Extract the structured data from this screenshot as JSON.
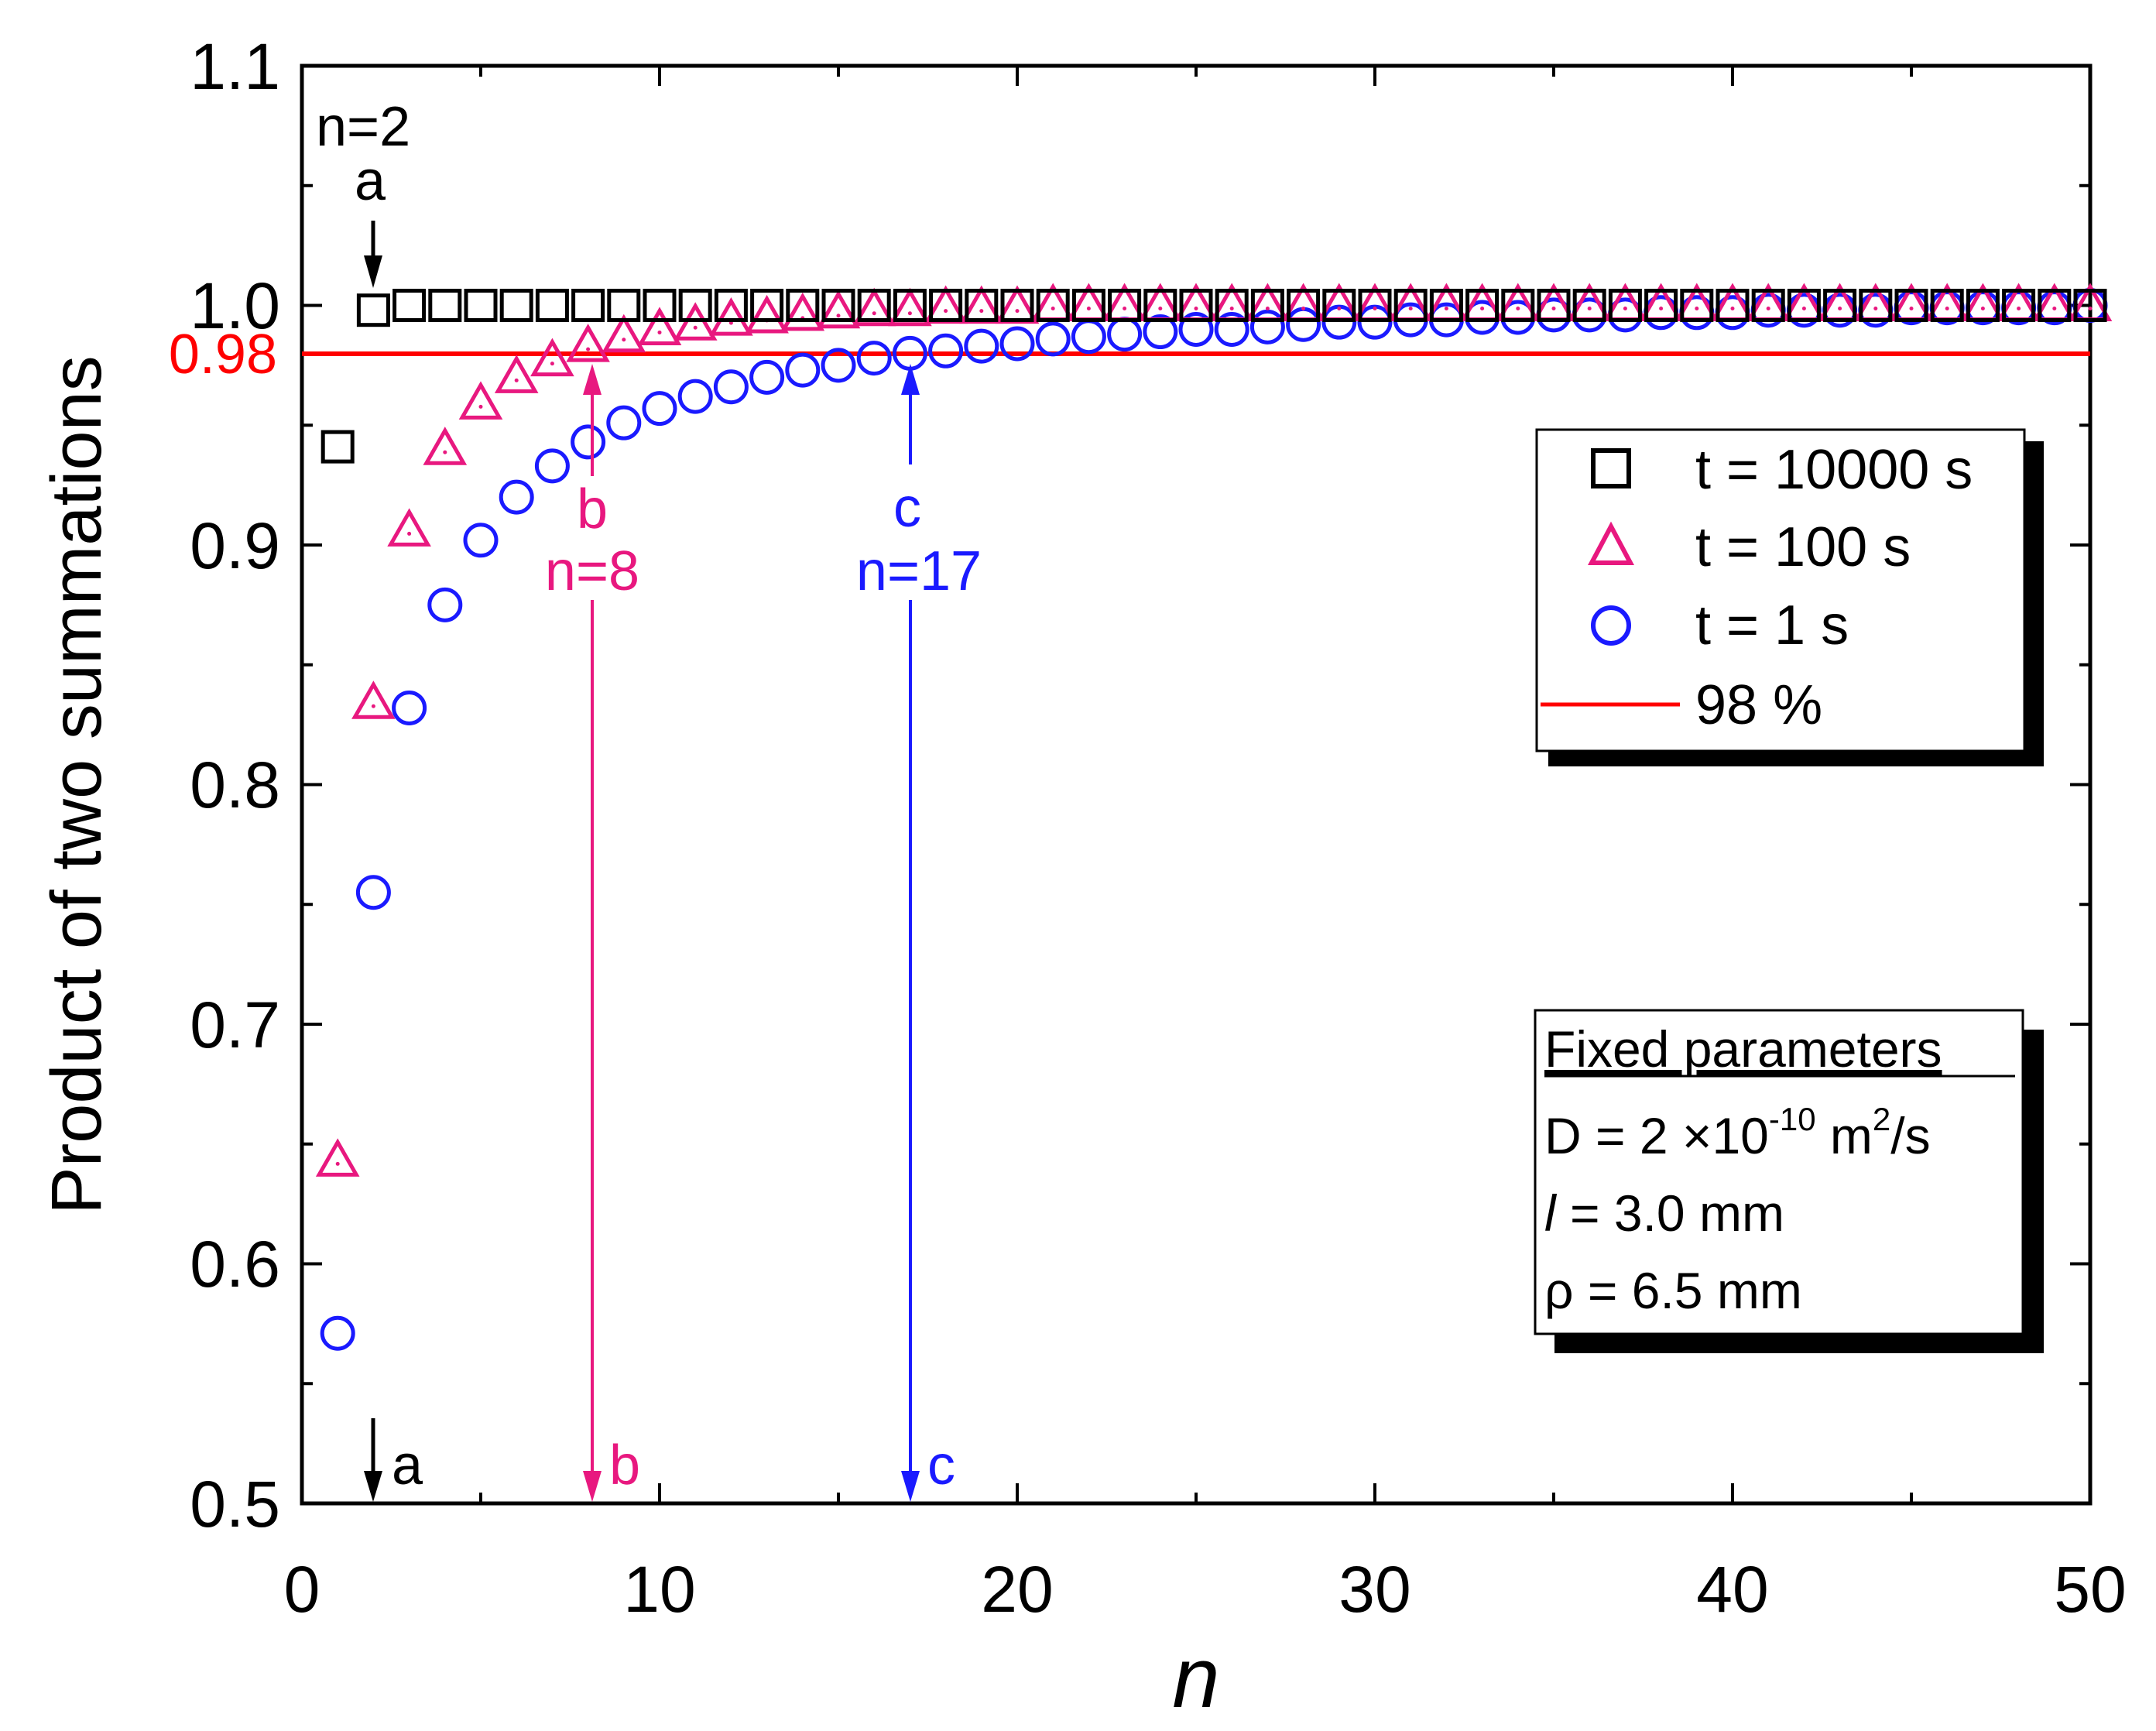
{
  "colors": {
    "series_10000": "#000000",
    "series_100": "#e8187f",
    "series_1": "#1a1aff",
    "threshold": "#ff0000",
    "axis": "#000000"
  },
  "chart_data": {
    "type": "scatter",
    "title": "",
    "xlabel": "n",
    "ylabel": "Product of two summations",
    "xlim": [
      0,
      50
    ],
    "ylim": [
      0.5,
      1.1
    ],
    "x_ticks": [
      "0",
      "10",
      "20",
      "30",
      "40",
      "50"
    ],
    "y_ticks": [
      "0.5",
      "0.6",
      "0.7",
      "0.8",
      "0.9",
      "1.0",
      "1.1"
    ],
    "threshold": {
      "value": 0.98,
      "label": "0.98",
      "legend": "98 %"
    },
    "series": [
      {
        "name": "t = 10000 s",
        "marker": "square",
        "x": [
          1,
          2,
          3,
          4,
          5,
          6,
          7,
          8,
          9,
          10,
          11,
          12,
          13,
          14,
          15,
          16,
          17,
          18,
          19,
          20,
          21,
          22,
          23,
          24,
          25,
          26,
          27,
          28,
          29,
          30,
          31,
          32,
          33,
          34,
          35,
          36,
          37,
          38,
          39,
          40,
          41,
          42,
          43,
          44,
          45,
          46,
          47,
          48,
          49,
          50
        ],
        "y": [
          0.941,
          0.998,
          1.0,
          1.0,
          1.0,
          1.0,
          1.0,
          1.0,
          1.0,
          1.0,
          1.0,
          1.0,
          1.0,
          1.0,
          1.0,
          1.0,
          1.0,
          1.0,
          1.0,
          1.0,
          1.0,
          1.0,
          1.0,
          1.0,
          1.0,
          1.0,
          1.0,
          1.0,
          1.0,
          1.0,
          1.0,
          1.0,
          1.0,
          1.0,
          1.0,
          1.0,
          1.0,
          1.0,
          1.0,
          1.0,
          1.0,
          1.0,
          1.0,
          1.0,
          1.0,
          1.0,
          1.0,
          1.0,
          1.0,
          1.0
        ]
      },
      {
        "name": "t = 100 s",
        "marker": "triangle",
        "x": [
          1,
          2,
          3,
          4,
          5,
          6,
          7,
          8,
          9,
          10,
          11,
          12,
          13,
          14,
          15,
          16,
          17,
          18,
          19,
          20,
          21,
          22,
          23,
          24,
          25,
          26,
          27,
          28,
          29,
          30,
          31,
          32,
          33,
          34,
          35,
          36,
          37,
          38,
          39,
          40,
          41,
          42,
          43,
          44,
          45,
          46,
          47,
          48,
          49,
          50
        ],
        "y": [
          0.643,
          0.834,
          0.906,
          0.94,
          0.959,
          0.97,
          0.977,
          0.983,
          0.987,
          0.99,
          0.992,
          0.994,
          0.995,
          0.996,
          0.997,
          0.998,
          0.998,
          0.999,
          0.999,
          0.999,
          1.0,
          1.0,
          1.0,
          1.0,
          1.0,
          1.0,
          1.0,
          1.0,
          1.0,
          1.0,
          1.0,
          1.0,
          1.0,
          1.0,
          1.0,
          1.0,
          1.0,
          1.0,
          1.0,
          1.0,
          1.0,
          1.0,
          1.0,
          1.0,
          1.0,
          1.0,
          1.0,
          1.0,
          1.0,
          1.0
        ]
      },
      {
        "name": "t = 1 s",
        "marker": "circle",
        "x": [
          1,
          2,
          3,
          4,
          5,
          6,
          7,
          8,
          9,
          10,
          11,
          12,
          13,
          14,
          15,
          16,
          17,
          18,
          19,
          20,
          21,
          22,
          23,
          24,
          25,
          26,
          27,
          28,
          29,
          30,
          31,
          32,
          33,
          34,
          35,
          36,
          37,
          38,
          39,
          40,
          41,
          42,
          43,
          44,
          45,
          46,
          47,
          48,
          49,
          50
        ],
        "y": [
          0.571,
          0.755,
          0.832,
          0.875,
          0.902,
          0.92,
          0.933,
          0.943,
          0.951,
          0.957,
          0.962,
          0.966,
          0.97,
          0.973,
          0.975,
          0.978,
          0.98,
          0.981,
          0.983,
          0.984,
          0.986,
          0.987,
          0.988,
          0.989,
          0.99,
          0.99,
          0.991,
          0.992,
          0.993,
          0.993,
          0.994,
          0.994,
          0.995,
          0.995,
          0.996,
          0.996,
          0.996,
          0.997,
          0.997,
          0.997,
          0.998,
          0.998,
          0.998,
          0.998,
          0.999,
          0.999,
          0.999,
          0.999,
          0.999,
          1.0
        ]
      }
    ],
    "annotations": {
      "a": {
        "n_label": "n=2",
        "letter": "a",
        "x": 2
      },
      "b": {
        "n_label": "n=8",
        "letter": "b",
        "x": 8
      },
      "c": {
        "n_label": "n=17",
        "letter": "c",
        "x": 17
      }
    },
    "legend": {
      "position": "top-right",
      "items": [
        "t = 10000 s",
        "t = 100 s",
        "t = 1 s",
        "98 %"
      ]
    },
    "info_box": {
      "title": "Fixed parameters",
      "D_prefix": "D = 2 ×10",
      "D_exp": "-10",
      "D_unit_a": " m",
      "D_unit_exp": "2",
      "D_unit_b": "/s",
      "l_symbol": "l",
      "l_value": " = 3.0 mm",
      "rho_line": "ρ = 6.5 mm"
    }
  }
}
